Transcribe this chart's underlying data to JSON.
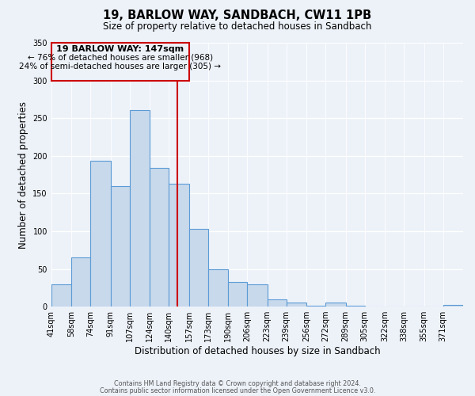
{
  "title": "19, BARLOW WAY, SANDBACH, CW11 1PB",
  "subtitle": "Size of property relative to detached houses in Sandbach",
  "xlabel": "Distribution of detached houses by size in Sandbach",
  "ylabel": "Number of detached properties",
  "bar_values": [
    30,
    65,
    193,
    160,
    261,
    184,
    163,
    103,
    50,
    33,
    30,
    10,
    5,
    1,
    5,
    1,
    0,
    0,
    0,
    0,
    2
  ],
  "bar_labels": [
    "41sqm",
    "58sqm",
    "74sqm",
    "91sqm",
    "107sqm",
    "124sqm",
    "140sqm",
    "157sqm",
    "173sqm",
    "190sqm",
    "206sqm",
    "223sqm",
    "239sqm",
    "256sqm",
    "272sqm",
    "289sqm",
    "305sqm",
    "322sqm",
    "338sqm",
    "355sqm",
    "371sqm"
  ],
  "bar_color": "#c8d9ec",
  "bar_edge_color": "#5b9bd5",
  "vline_x": 147,
  "marker_label": "19 BARLOW WAY: 147sqm",
  "annotation_line1": "← 76% of detached houses are smaller (968)",
  "annotation_line2": "24% of semi-detached houses are larger (305) →",
  "vline_color": "#cc0000",
  "box_edge_color": "#cc0000",
  "ylim": [
    0,
    350
  ],
  "yticks": [
    0,
    50,
    100,
    150,
    200,
    250,
    300,
    350
  ],
  "footer1": "Contains HM Land Registry data © Crown copyright and database right 2024.",
  "footer2": "Contains public sector information licensed under the Open Government Licence v3.0.",
  "bg_color": "#edf2f9",
  "bin_edges": [
    41,
    58,
    74,
    91,
    107,
    124,
    140,
    157,
    173,
    190,
    206,
    223,
    239,
    256,
    272,
    289,
    305,
    322,
    338,
    355,
    371,
    388
  ]
}
